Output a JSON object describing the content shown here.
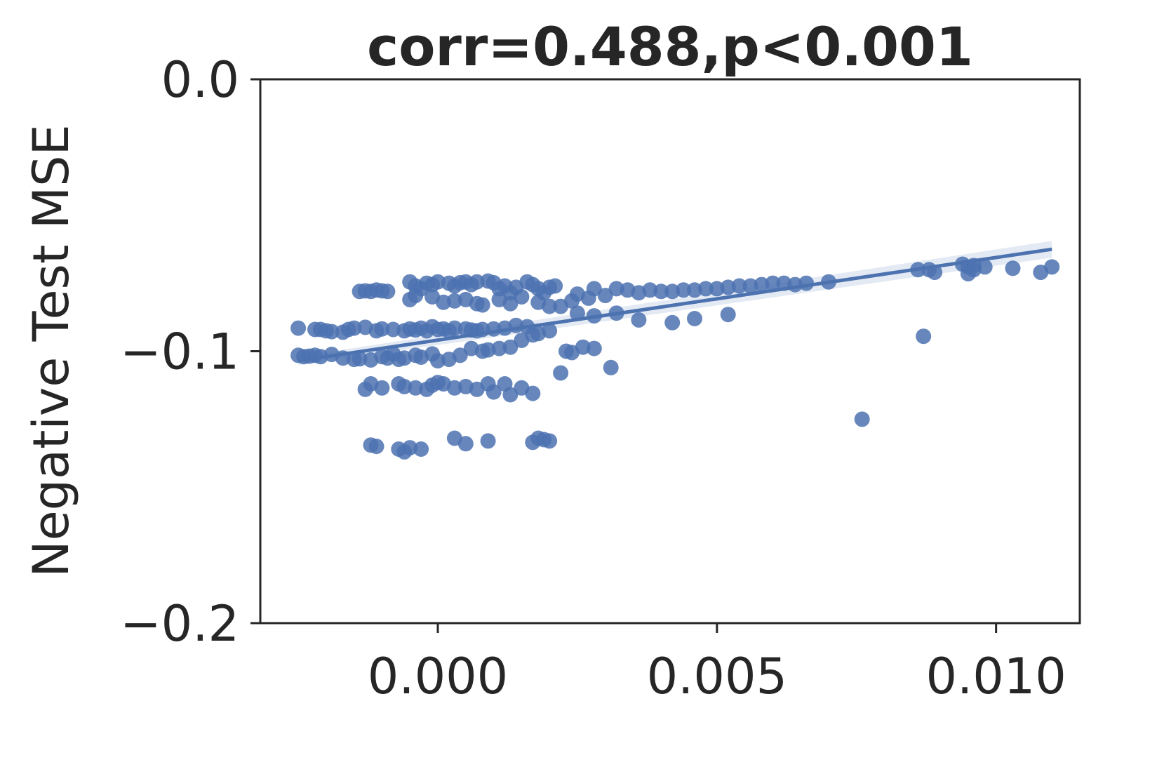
{
  "chart_data": {
    "type": "scatter",
    "title": "corr=0.488,p<0.001",
    "xlabel": "",
    "ylabel": "Negative Test MSE",
    "xlim": [
      -0.00318,
      0.0115
    ],
    "ylim": [
      -0.2,
      0.0
    ],
    "xticks": [
      0.0,
      0.005,
      0.01
    ],
    "xtick_labels": [
      "0.000",
      "0.005",
      "0.010"
    ],
    "yticks": [
      0.0,
      -0.1,
      -0.2
    ],
    "ytick_labels": [
      "0.0",
      "−0.1",
      "−0.2"
    ],
    "grid": false,
    "legend": "none",
    "color": "#4c72b0",
    "regression": {
      "x0": -0.0025,
      "y0": -0.1035,
      "x1": 0.011,
      "y1": -0.0625
    },
    "points": [
      [
        -0.0025,
        -0.0915
      ],
      [
        -0.0022,
        -0.092
      ],
      [
        -0.0021,
        -0.092
      ],
      [
        -0.002,
        -0.0925
      ],
      [
        -0.0019,
        -0.0928
      ],
      [
        -0.0017,
        -0.093
      ],
      [
        -0.0016,
        -0.092
      ],
      [
        -0.0015,
        -0.0915
      ],
      [
        -0.0013,
        -0.0912
      ],
      [
        -0.0011,
        -0.0925
      ],
      [
        -0.001,
        -0.0918
      ],
      [
        -0.0008,
        -0.092
      ],
      [
        -0.0006,
        -0.0925
      ],
      [
        -0.0005,
        -0.0918
      ],
      [
        -0.0004,
        -0.0922
      ],
      [
        -0.0003,
        -0.0915
      ],
      [
        -0.0002,
        -0.0925
      ],
      [
        -0.0001,
        -0.091
      ],
      [
        0.0,
        -0.092
      ],
      [
        0.0001,
        -0.0918
      ],
      [
        0.0002,
        -0.0925
      ],
      [
        0.0003,
        -0.0915
      ],
      [
        0.0005,
        -0.0918
      ],
      [
        0.0006,
        -0.0922
      ],
      [
        0.0007,
        -0.0925
      ],
      [
        0.0008,
        -0.092
      ],
      [
        0.001,
        -0.0918
      ],
      [
        0.0012,
        -0.0915
      ],
      [
        0.0014,
        -0.0905
      ],
      [
        0.0016,
        -0.091
      ],
      [
        -0.0025,
        -0.1015
      ],
      [
        -0.0024,
        -0.102
      ],
      [
        -0.0023,
        -0.1018
      ],
      [
        -0.0022,
        -0.1015
      ],
      [
        -0.0021,
        -0.102
      ],
      [
        -0.0019,
        -0.1012
      ],
      [
        -0.0017,
        -0.1025
      ],
      [
        -0.0015,
        -0.103
      ],
      [
        -0.0014,
        -0.1028
      ],
      [
        -0.0012,
        -0.1032
      ],
      [
        -0.001,
        -0.102
      ],
      [
        -0.0009,
        -0.1025
      ],
      [
        -0.0008,
        -0.101
      ],
      [
        -0.0007,
        -0.103
      ],
      [
        -0.0006,
        -0.1025
      ],
      [
        -0.0004,
        -0.1015
      ],
      [
        -0.0003,
        -0.1022
      ],
      [
        -0.0001,
        -0.101
      ],
      [
        0.0,
        -0.1035
      ],
      [
        0.0002,
        -0.103
      ],
      [
        0.0004,
        -0.1015
      ],
      [
        0.0006,
        -0.099
      ],
      [
        0.0008,
        -0.1
      ],
      [
        0.0009,
        -0.0995
      ],
      [
        0.0011,
        -0.099
      ],
      [
        0.0013,
        -0.0985
      ],
      [
        0.0015,
        -0.096
      ],
      [
        0.0017,
        -0.094
      ],
      [
        0.0018,
        -0.0935
      ],
      [
        0.002,
        -0.0925
      ],
      [
        -0.0014,
        -0.078
      ],
      [
        -0.0013,
        -0.0778
      ],
      [
        -0.0012,
        -0.078
      ],
      [
        -0.0011,
        -0.0775
      ],
      [
        -0.001,
        -0.0778
      ],
      [
        -0.0009,
        -0.078
      ],
      [
        -0.0005,
        -0.0745
      ],
      [
        -0.0004,
        -0.076
      ],
      [
        -0.0003,
        -0.077
      ],
      [
        -0.0002,
        -0.075
      ],
      [
        -0.0001,
        -0.0755
      ],
      [
        0.0,
        -0.0745
      ],
      [
        0.0002,
        -0.075
      ],
      [
        0.0003,
        -0.076
      ],
      [
        0.0004,
        -0.0748
      ],
      [
        0.0005,
        -0.0745
      ],
      [
        0.0006,
        -0.0755
      ],
      [
        0.0007,
        -0.0745
      ],
      [
        0.0009,
        -0.0742
      ],
      [
        0.001,
        -0.0748
      ],
      [
        0.0011,
        -0.077
      ],
      [
        0.0012,
        -0.076
      ],
      [
        0.0013,
        -0.0785
      ],
      [
        0.0014,
        -0.0765
      ],
      [
        0.0016,
        -0.0745
      ],
      [
        0.0017,
        -0.0755
      ],
      [
        0.0018,
        -0.077
      ],
      [
        0.0019,
        -0.0785
      ],
      [
        0.002,
        -0.0765
      ],
      [
        0.0021,
        -0.076
      ],
      [
        -0.0005,
        -0.081
      ],
      [
        -0.0004,
        -0.0795
      ],
      [
        -0.0001,
        -0.08
      ],
      [
        0.0001,
        -0.082
      ],
      [
        0.0003,
        -0.0815
      ],
      [
        0.0005,
        -0.081
      ],
      [
        0.0007,
        -0.0825
      ],
      [
        0.0008,
        -0.083
      ],
      [
        0.0011,
        -0.081
      ],
      [
        0.0013,
        -0.0825
      ],
      [
        0.0015,
        -0.08
      ],
      [
        0.0018,
        -0.082
      ],
      [
        0.002,
        -0.0835
      ],
      [
        0.0022,
        -0.0835
      ],
      [
        0.0024,
        -0.0815
      ],
      [
        0.0025,
        -0.079
      ],
      [
        0.0027,
        -0.0805
      ],
      [
        0.0028,
        -0.077
      ],
      [
        0.003,
        -0.0795
      ],
      [
        0.0032,
        -0.077
      ],
      [
        0.0034,
        -0.0775
      ],
      [
        0.0036,
        -0.0785
      ],
      [
        0.0038,
        -0.0775
      ],
      [
        0.004,
        -0.078
      ],
      [
        0.0042,
        -0.078
      ],
      [
        0.0044,
        -0.0775
      ],
      [
        0.0046,
        -0.0775
      ],
      [
        0.0048,
        -0.077
      ],
      [
        0.005,
        -0.077
      ],
      [
        0.0052,
        -0.0765
      ],
      [
        0.0054,
        -0.076
      ],
      [
        0.0056,
        -0.076
      ],
      [
        0.0058,
        -0.0755
      ],
      [
        0.006,
        -0.075
      ],
      [
        0.0062,
        -0.075
      ],
      [
        0.0064,
        -0.0755
      ],
      [
        0.0066,
        -0.075
      ],
      [
        0.007,
        -0.0745
      ],
      [
        0.0032,
        -0.086
      ],
      [
        0.0036,
        -0.0885
      ],
      [
        0.0042,
        -0.0895
      ],
      [
        0.0046,
        -0.088
      ],
      [
        0.0052,
        -0.0865
      ],
      [
        0.0025,
        -0.086
      ],
      [
        0.0028,
        -0.087
      ],
      [
        -0.0013,
        -0.114
      ],
      [
        -0.0012,
        -0.112
      ],
      [
        -0.001,
        -0.1135
      ],
      [
        -0.0007,
        -0.112
      ],
      [
        -0.0006,
        -0.113
      ],
      [
        -0.0004,
        -0.1135
      ],
      [
        -0.0002,
        -0.114
      ],
      [
        -0.0001,
        -0.1125
      ],
      [
        0.0,
        -0.1115
      ],
      [
        0.0001,
        -0.112
      ],
      [
        0.0003,
        -0.1135
      ],
      [
        0.0005,
        -0.113
      ],
      [
        0.0007,
        -0.114
      ],
      [
        0.0009,
        -0.112
      ],
      [
        0.001,
        -0.115
      ],
      [
        0.0012,
        -0.112
      ],
      [
        0.0013,
        -0.116
      ],
      [
        0.0015,
        -0.1135
      ],
      [
        0.0017,
        -0.1155
      ],
      [
        0.0023,
        -0.1
      ],
      [
        0.0024,
        -0.1005
      ],
      [
        0.0026,
        -0.0985
      ],
      [
        0.0028,
        -0.099
      ],
      [
        0.0031,
        -0.106
      ],
      [
        0.0022,
        -0.108
      ],
      [
        -0.0012,
        -0.1345
      ],
      [
        -0.0011,
        -0.135
      ],
      [
        -0.0007,
        -0.136
      ],
      [
        -0.0006,
        -0.137
      ],
      [
        -0.0005,
        -0.1355
      ],
      [
        -0.0003,
        -0.136
      ],
      [
        0.0003,
        -0.132
      ],
      [
        0.0005,
        -0.134
      ],
      [
        0.0009,
        -0.133
      ],
      [
        0.0017,
        -0.1335
      ],
      [
        0.0018,
        -0.132
      ],
      [
        0.0019,
        -0.1325
      ],
      [
        0.002,
        -0.133
      ],
      [
        0.0076,
        -0.125
      ],
      [
        0.0087,
        -0.0945
      ],
      [
        0.0086,
        -0.07
      ],
      [
        0.0088,
        -0.07
      ],
      [
        0.0089,
        -0.071
      ],
      [
        0.0094,
        -0.068
      ],
      [
        0.0095,
        -0.069
      ],
      [
        0.0096,
        -0.07
      ],
      [
        0.0098,
        -0.069
      ],
      [
        0.0103,
        -0.0695
      ],
      [
        0.0108,
        -0.071
      ],
      [
        0.011,
        -0.069
      ],
      [
        0.0095,
        -0.0715
      ],
      [
        0.0096,
        -0.0685
      ]
    ]
  }
}
